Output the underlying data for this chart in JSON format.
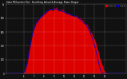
{
  "title": "Solar PV/Inverter Perf - East Array Actual & Average Power Output",
  "background_color": "#111111",
  "plot_bg_color": "#111111",
  "grid_color": "#ffffff",
  "area_color": "#dd0000",
  "avg_color": "#0000cc",
  "ylim": [
    0,
    1.0
  ],
  "xlim": [
    0,
    143
  ],
  "legend_labels": [
    "Actual W",
    "Avg W"
  ],
  "legend_colors": [
    "#dd0000",
    "#0000cc"
  ],
  "actual_values": [
    0,
    0,
    0,
    0,
    0,
    0,
    0,
    0,
    0,
    0,
    0,
    0,
    0,
    0,
    0,
    0,
    0,
    0,
    0,
    0,
    0,
    0.01,
    0.03,
    0.06,
    0.1,
    0.16,
    0.22,
    0.29,
    0.36,
    0.43,
    0.5,
    0.56,
    0.61,
    0.65,
    0.68,
    0.71,
    0.73,
    0.75,
    0.77,
    0.79,
    0.8,
    0.81,
    0.82,
    0.83,
    0.845,
    0.855,
    0.865,
    0.875,
    0.885,
    0.895,
    0.905,
    0.915,
    0.92,
    0.922,
    0.924,
    0.926,
    0.928,
    0.93,
    0.932,
    0.934,
    0.93,
    0.925,
    0.92,
    0.915,
    0.91,
    0.905,
    0.9,
    0.895,
    0.89,
    0.885,
    0.88,
    0.875,
    0.87,
    0.865,
    0.86,
    0.86,
    0.855,
    0.85,
    0.845,
    0.84,
    0.835,
    0.83,
    0.825,
    0.82,
    0.815,
    0.81,
    0.8,
    0.79,
    0.78,
    0.77,
    0.76,
    0.75,
    0.74,
    0.73,
    0.72,
    0.71,
    0.695,
    0.68,
    0.66,
    0.64,
    0.615,
    0.59,
    0.565,
    0.54,
    0.51,
    0.48,
    0.45,
    0.415,
    0.38,
    0.34,
    0.295,
    0.25,
    0.2,
    0.155,
    0.11,
    0.075,
    0.05,
    0.03,
    0.015,
    0.008,
    0.004,
    0.001,
    0,
    0,
    0,
    0,
    0,
    0,
    0,
    0,
    0,
    0,
    0,
    0,
    0,
    0,
    0,
    0,
    0,
    0,
    0,
    0,
    0,
    0,
    0
  ],
  "avg_values": [
    0,
    0,
    0,
    0,
    0,
    0,
    0,
    0,
    0,
    0,
    0,
    0,
    0,
    0,
    0,
    0,
    0,
    0,
    0,
    0,
    0,
    0.01,
    0.03,
    0.06,
    0.1,
    0.16,
    0.22,
    0.29,
    0.36,
    0.43,
    0.5,
    0.55,
    0.6,
    0.64,
    0.67,
    0.7,
    0.72,
    0.74,
    0.76,
    0.78,
    0.8,
    0.81,
    0.82,
    0.83,
    0.845,
    0.855,
    0.865,
    0.875,
    0.885,
    0.895,
    0.905,
    0.915,
    0.92,
    0.922,
    0.924,
    0.926,
    0.928,
    0.93,
    0.93,
    0.93,
    0.928,
    0.924,
    0.92,
    0.915,
    0.91,
    0.905,
    0.9,
    0.895,
    0.89,
    0.885,
    0.88,
    0.875,
    0.87,
    0.865,
    0.86,
    0.858,
    0.855,
    0.85,
    0.845,
    0.84,
    0.835,
    0.83,
    0.825,
    0.82,
    0.815,
    0.81,
    0.8,
    0.79,
    0.78,
    0.77,
    0.76,
    0.75,
    0.74,
    0.728,
    0.715,
    0.7,
    0.682,
    0.662,
    0.64,
    0.615,
    0.588,
    0.558,
    0.525,
    0.49,
    0.452,
    0.41,
    0.365,
    0.315,
    0.262,
    0.207,
    0.153,
    0.102,
    0.06,
    0.03,
    0.012,
    0.004,
    0.001,
    0,
    0,
    0,
    0,
    0,
    0,
    0,
    0,
    0,
    0,
    0,
    0,
    0,
    0,
    0,
    0,
    0,
    0,
    0,
    0,
    0,
    0,
    0,
    0,
    0,
    0
  ]
}
